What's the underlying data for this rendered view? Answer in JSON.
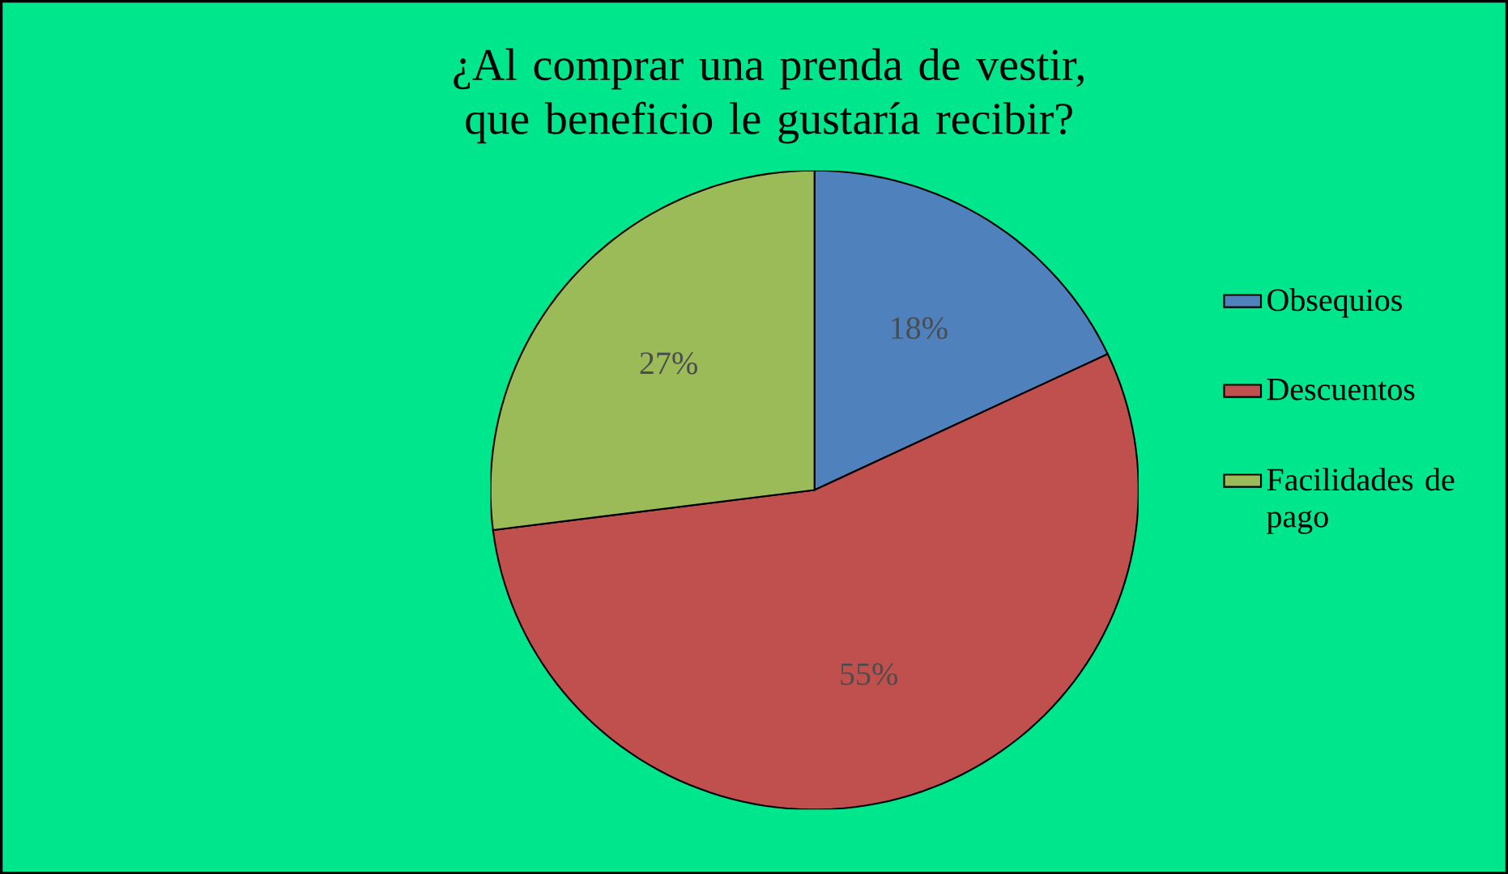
{
  "chart_data": {
    "type": "pie",
    "title": "¿Al comprar una prenda de vestir, que beneficio le gustaría recibir?",
    "categories": [
      "Obsequios",
      "Descuentos",
      "Facilidades de pago"
    ],
    "values": [
      18,
      55,
      27
    ],
    "value_labels": [
      "18%",
      "55%",
      "27%"
    ],
    "colors": [
      "#4f81bd",
      "#c0504d",
      "#9bbb59"
    ],
    "legend": "right"
  }
}
